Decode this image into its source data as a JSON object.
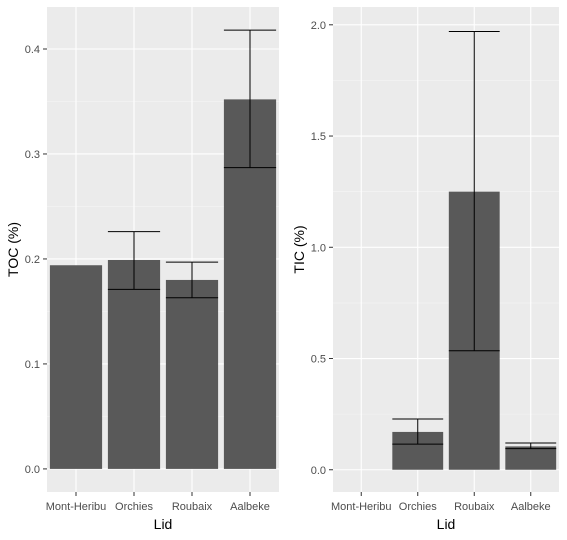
{
  "colors": {
    "panel_background": "#ebebeb",
    "grid_major": "#ffffff",
    "grid_minor": "#f5f5f5",
    "bar_fill": "#595959",
    "errorbar": "#000000",
    "tick_text": "#4d4d4d",
    "tick_mark": "#333333"
  },
  "chart_data": [
    {
      "type": "bar",
      "categories": [
        "Mont-Heribu",
        "Orchies",
        "Roubaix",
        "Aalbeke"
      ],
      "xlabel": "Lid",
      "ylabel": "TOC (%)",
      "ylim": [
        -0.022,
        0.44
      ],
      "yticks": [
        0.0,
        0.1,
        0.2,
        0.3,
        0.4
      ],
      "ytick_labels": [
        "0.0",
        "0.1",
        "0.2",
        "0.3",
        "0.4"
      ],
      "grid": true,
      "values": [
        0.194,
        0.199,
        0.18,
        0.352
      ],
      "error_low": [
        null,
        0.171,
        0.163,
        0.287
      ],
      "error_high": [
        null,
        0.226,
        0.197,
        0.418
      ]
    },
    {
      "type": "bar",
      "categories": [
        "Mont-Heribu",
        "Orchies",
        "Roubaix",
        "Aalbeke"
      ],
      "xlabel": "Lid",
      "ylabel": "TIC (%)",
      "ylim": [
        -0.1,
        2.08
      ],
      "yticks": [
        0.0,
        0.5,
        1.0,
        1.5,
        2.0
      ],
      "ytick_labels": [
        "0.0",
        "0.5",
        "1.0",
        "1.5",
        "2.0"
      ],
      "grid": true,
      "values": [
        0.0,
        0.17,
        1.25,
        0.105
      ],
      "error_low": [
        null,
        0.115,
        0.535,
        0.095
      ],
      "error_high": [
        null,
        0.228,
        1.97,
        0.12
      ]
    }
  ]
}
